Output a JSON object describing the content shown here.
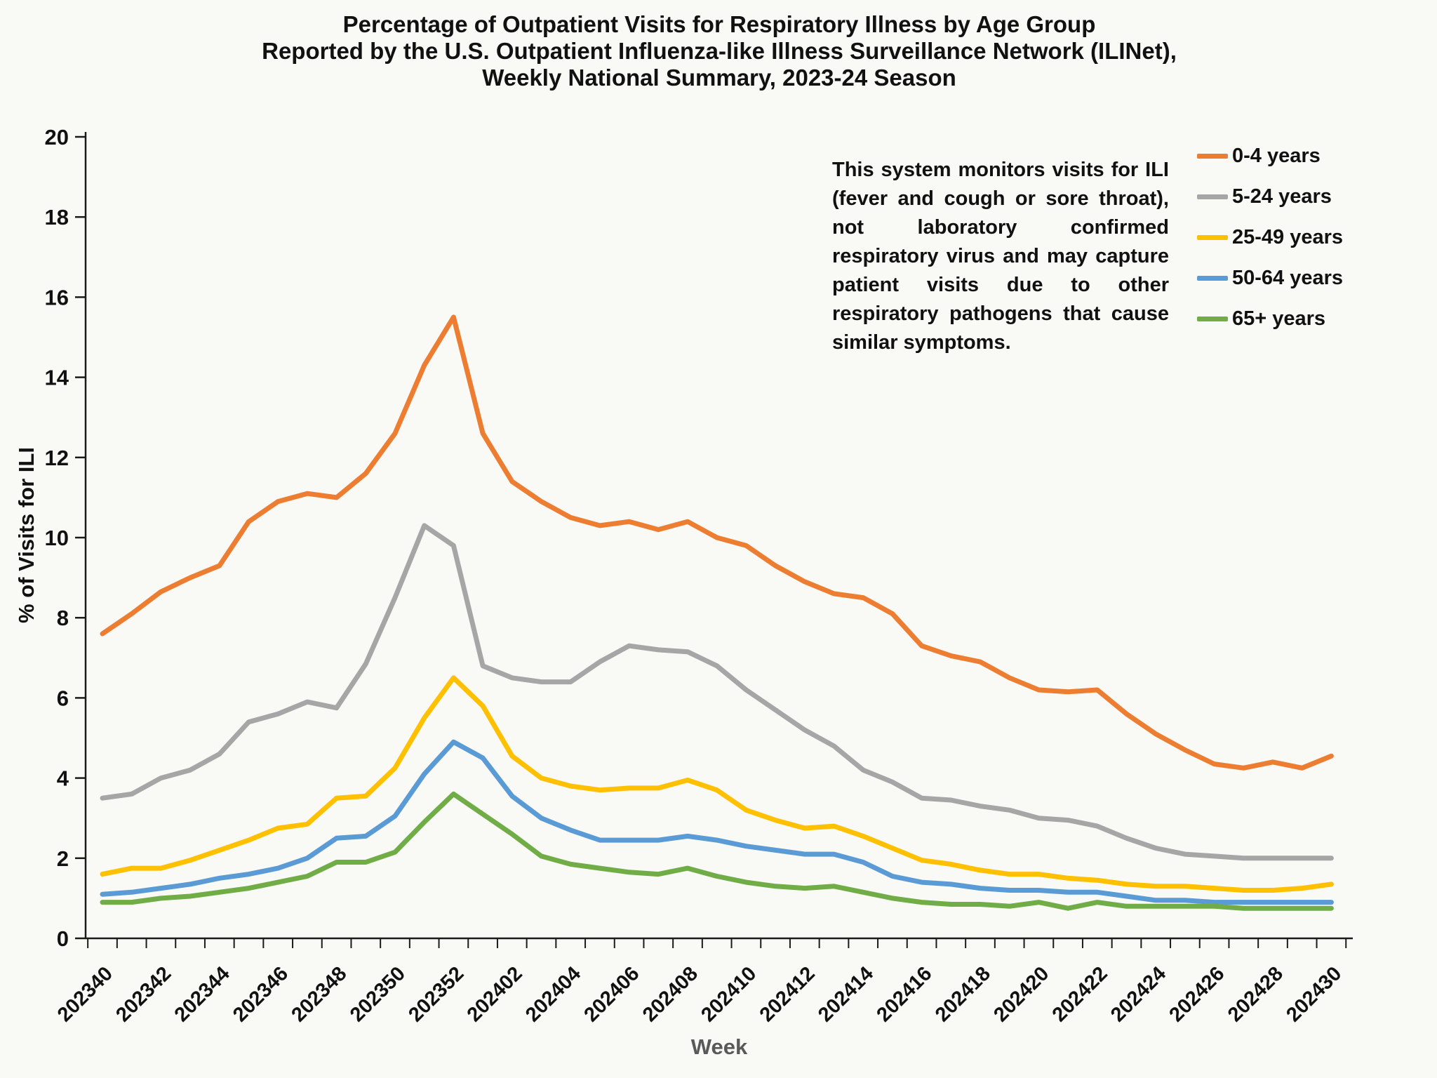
{
  "title": {
    "line1": "Percentage of Outpatient Visits for Respiratory Illness by Age Group",
    "line2": "Reported by the U.S. Outpatient Influenza-like Illness Surveillance Network (ILINet),",
    "line3": "Weekly National Summary, 2023-24 Season"
  },
  "annotation": "This system monitors visits for ILI (fever and cough or sore throat), not laboratory confirmed respiratory virus and may capture patient visits due to other respiratory pathogens that cause similar symptoms.",
  "axes": {
    "xlabel": "Week",
    "ylabel": "% of Visits for ILI"
  },
  "colors": {
    "background": "#f9f9f6",
    "axis": "#1a1a1a",
    "tick_text": "#111111",
    "week_label": "#595959"
  },
  "chart_data": {
    "type": "line",
    "title": "Percentage of Outpatient Visits for Respiratory Illness by Age Group, ILINet Weekly National Summary, 2023-24 Season",
    "xlabel": "Week",
    "ylabel": "% of Visits for ILI",
    "ylim": [
      0,
      20
    ],
    "ytick_step": 2,
    "grid": false,
    "legend_position": "right",
    "x_tick_label_every": 2,
    "x": [
      "202340",
      "202341",
      "202342",
      "202343",
      "202344",
      "202345",
      "202346",
      "202347",
      "202348",
      "202349",
      "202350",
      "202351",
      "202352",
      "202401",
      "202402",
      "202403",
      "202404",
      "202405",
      "202406",
      "202407",
      "202408",
      "202409",
      "202410",
      "202411",
      "202412",
      "202413",
      "202414",
      "202415",
      "202416",
      "202417",
      "202418",
      "202419",
      "202420",
      "202421",
      "202422",
      "202423",
      "202424",
      "202425",
      "202426",
      "202427",
      "202428",
      "202429",
      "202430"
    ],
    "series": [
      {
        "name": "0-4 years",
        "color": "#ED7D31",
        "values": [
          7.6,
          8.1,
          8.65,
          9.0,
          9.3,
          10.4,
          10.9,
          11.1,
          11.0,
          11.6,
          12.6,
          14.3,
          15.5,
          12.6,
          11.4,
          10.9,
          10.5,
          10.3,
          10.4,
          10.2,
          10.4,
          10.0,
          9.8,
          9.3,
          8.9,
          8.6,
          8.5,
          8.1,
          7.3,
          7.05,
          6.9,
          6.5,
          6.2,
          6.15,
          6.2,
          5.6,
          5.1,
          4.7,
          4.35,
          4.25,
          4.4,
          4.25,
          4.55
        ]
      },
      {
        "name": "5-24 years",
        "color": "#A6A6A6",
        "values": [
          3.5,
          3.6,
          4.0,
          4.2,
          4.6,
          5.4,
          5.6,
          5.9,
          5.75,
          6.85,
          8.5,
          10.3,
          9.8,
          6.8,
          6.5,
          6.4,
          6.4,
          6.9,
          7.3,
          7.2,
          7.15,
          6.8,
          6.2,
          5.7,
          5.2,
          4.8,
          4.2,
          3.9,
          3.5,
          3.45,
          3.3,
          3.2,
          3.0,
          2.95,
          2.8,
          2.5,
          2.25,
          2.1,
          2.05,
          2.0,
          2.0,
          2.0,
          2.0
        ]
      },
      {
        "name": "25-49 years",
        "color": "#FFC000",
        "values": [
          1.6,
          1.75,
          1.75,
          1.95,
          2.2,
          2.45,
          2.75,
          2.85,
          3.5,
          3.55,
          4.25,
          5.5,
          6.5,
          5.8,
          4.55,
          4.0,
          3.8,
          3.7,
          3.75,
          3.75,
          3.95,
          3.7,
          3.2,
          2.95,
          2.75,
          2.8,
          2.55,
          2.25,
          1.95,
          1.85,
          1.7,
          1.6,
          1.6,
          1.5,
          1.45,
          1.35,
          1.3,
          1.3,
          1.25,
          1.2,
          1.2,
          1.25,
          1.35
        ]
      },
      {
        "name": "50-64 years",
        "color": "#5B9BD5",
        "values": [
          1.1,
          1.15,
          1.25,
          1.35,
          1.5,
          1.6,
          1.75,
          2.0,
          2.5,
          2.55,
          3.05,
          4.1,
          4.9,
          4.5,
          3.55,
          3.0,
          2.7,
          2.45,
          2.45,
          2.45,
          2.55,
          2.45,
          2.3,
          2.2,
          2.1,
          2.1,
          1.9,
          1.55,
          1.4,
          1.35,
          1.25,
          1.2,
          1.2,
          1.15,
          1.15,
          1.05,
          0.95,
          0.95,
          0.9,
          0.9,
          0.9,
          0.9,
          0.9
        ]
      },
      {
        "name": "65+ years",
        "color": "#70AD47",
        "values": [
          0.9,
          0.9,
          1.0,
          1.05,
          1.15,
          1.25,
          1.4,
          1.55,
          1.9,
          1.9,
          2.15,
          2.9,
          3.6,
          3.1,
          2.6,
          2.05,
          1.85,
          1.75,
          1.65,
          1.6,
          1.75,
          1.55,
          1.4,
          1.3,
          1.25,
          1.3,
          1.15,
          1.0,
          0.9,
          0.85,
          0.85,
          0.8,
          0.9,
          0.75,
          0.9,
          0.8,
          0.8,
          0.8,
          0.8,
          0.75,
          0.75,
          0.75,
          0.75
        ]
      }
    ]
  }
}
